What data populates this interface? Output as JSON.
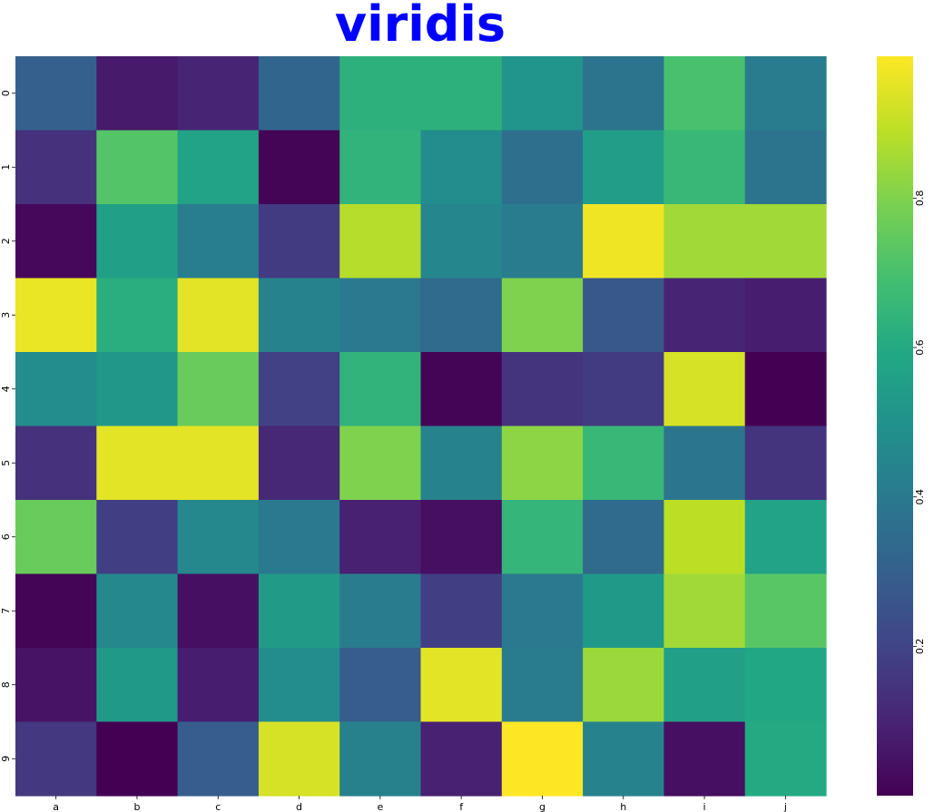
{
  "chart_data": {
    "type": "heatmap",
    "title": "viridis",
    "title_color": "#0000ff",
    "colormap": "viridis",
    "x_labels": [
      "a",
      "b",
      "c",
      "d",
      "e",
      "f",
      "g",
      "h",
      "i",
      "j"
    ],
    "y_labels": [
      "0",
      "1",
      "2",
      "3",
      "4",
      "5",
      "6",
      "7",
      "8",
      "9"
    ],
    "values": [
      [
        0.3,
        0.07,
        0.1,
        0.32,
        0.63,
        0.63,
        0.51,
        0.38,
        0.7,
        0.41
      ],
      [
        0.14,
        0.72,
        0.57,
        0.01,
        0.64,
        0.48,
        0.36,
        0.55,
        0.66,
        0.38
      ],
      [
        0.02,
        0.56,
        0.42,
        0.17,
        0.88,
        0.45,
        0.41,
        0.97,
        0.85,
        0.85
      ],
      [
        0.96,
        0.62,
        0.95,
        0.44,
        0.4,
        0.34,
        0.8,
        0.27,
        0.1,
        0.08
      ],
      [
        0.48,
        0.52,
        0.76,
        0.19,
        0.64,
        0.01,
        0.15,
        0.17,
        0.93,
        0.0
      ],
      [
        0.14,
        0.95,
        0.95,
        0.11,
        0.8,
        0.44,
        0.82,
        0.66,
        0.39,
        0.15
      ],
      [
        0.76,
        0.18,
        0.46,
        0.4,
        0.09,
        0.04,
        0.65,
        0.34,
        0.89,
        0.57
      ],
      [
        0.01,
        0.46,
        0.04,
        0.54,
        0.41,
        0.18,
        0.4,
        0.53,
        0.85,
        0.73
      ],
      [
        0.05,
        0.53,
        0.08,
        0.48,
        0.29,
        0.95,
        0.41,
        0.84,
        0.56,
        0.59
      ],
      [
        0.16,
        0.0,
        0.29,
        0.93,
        0.43,
        0.09,
        0.99,
        0.44,
        0.04,
        0.6
      ]
    ],
    "vmin": 0.0,
    "vmax": 0.99,
    "colorbar_ticks": [
      0.2,
      0.4,
      0.6,
      0.8
    ],
    "colorbar_tick_labels": [
      "0.2",
      "0.4",
      "0.6",
      "0.8"
    ]
  }
}
